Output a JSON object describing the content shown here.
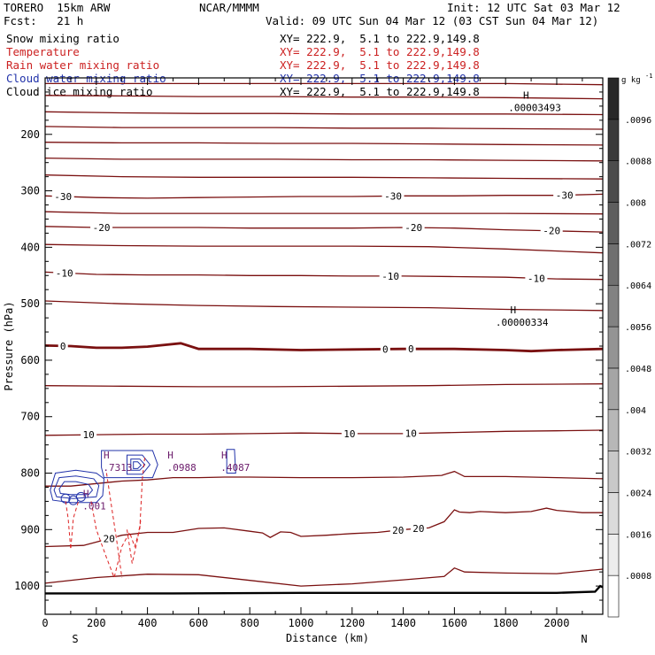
{
  "header": {
    "model": "TORERO  15km ARW",
    "org": "NCAR/MMMM",
    "init": "Init: 12 UTC Sat 03 Mar 12",
    "fcst": "Fcst:   21 h",
    "valid": "Valid: 09 UTC Sun 04 Mar 12 (03 CST Sun 04 Mar 12)"
  },
  "legend": [
    {
      "field": "Snow mixing ratio",
      "xy": "XY= 222.9,  5.1 to 222.9,149.8",
      "color": "#000000"
    },
    {
      "field": "Temperature",
      "xy": "XY= 222.9,  5.1 to 222.9,149.8",
      "color": "#cc2222"
    },
    {
      "field": "Rain water mixing ratio",
      "xy": "XY= 222.9,  5.1 to 222.9,149.8",
      "color": "#cc2222"
    },
    {
      "field": "Cloud water mixing ratio",
      "xy": "XY= 222.9,  5.1 to 222.9,149.8",
      "color": "#2233aa"
    },
    {
      "field": "Cloud ice mixing ratio",
      "xy": "XY= 222.9,  5.1 to 222.9,149.8",
      "color": "#000000"
    }
  ],
  "chart_data": {
    "type": "line",
    "xlabel": "Distance (km)",
    "ylabel": "Pressure (hPa)",
    "xlim": [
      0,
      2180
    ],
    "ylim": [
      1050,
      100
    ],
    "x_ticks": [
      0,
      200,
      400,
      600,
      800,
      1000,
      1200,
      1400,
      1600,
      1800,
      2000
    ],
    "y_ticks": [
      200,
      300,
      400,
      500,
      600,
      700,
      800,
      900,
      1000
    ],
    "x_endpoints": {
      "left": "S",
      "right": "N"
    },
    "colorbar": {
      "unit": "g kg",
      "unit_exp": "-1",
      "ticks": [
        ".0008",
        ".0016",
        ".0024",
        ".0032",
        ".004",
        ".0048",
        ".0056",
        ".0064",
        ".0072",
        ".008",
        ".0088",
        ".0096"
      ]
    },
    "temperature_isotherms": [
      {
        "label": "-30",
        "points": [
          [
            0,
            309
          ],
          [
            200,
            312
          ],
          [
            400,
            313
          ],
          [
            600,
            312
          ],
          [
            800,
            311
          ],
          [
            1000,
            310
          ],
          [
            1200,
            310
          ],
          [
            1400,
            309
          ],
          [
            1600,
            309
          ],
          [
            1800,
            308
          ],
          [
            2000,
            308
          ],
          [
            2180,
            306
          ]
        ],
        "labels_at": [
          70,
          1360,
          2030
        ]
      },
      {
        "label": "-20",
        "points": [
          [
            0,
            363
          ],
          [
            200,
            365
          ],
          [
            400,
            365
          ],
          [
            600,
            365
          ],
          [
            800,
            366
          ],
          [
            1000,
            366
          ],
          [
            1200,
            366
          ],
          [
            1400,
            365
          ],
          [
            1600,
            366
          ],
          [
            1800,
            369
          ],
          [
            2000,
            371
          ],
          [
            2180,
            373
          ]
        ],
        "labels_at": [
          220,
          1440,
          1980
        ]
      },
      {
        "label": "-10",
        "points": [
          [
            0,
            444
          ],
          [
            200,
            448
          ],
          [
            400,
            449
          ],
          [
            600,
            449
          ],
          [
            800,
            450
          ],
          [
            1000,
            450
          ],
          [
            1200,
            451
          ],
          [
            1400,
            451
          ],
          [
            1600,
            452
          ],
          [
            1800,
            453
          ],
          [
            2000,
            456
          ],
          [
            2180,
            457
          ]
        ],
        "labels_at": [
          75,
          1350,
          1920
        ]
      },
      {
        "label": "0",
        "points": [
          [
            0,
            574
          ],
          [
            100,
            575
          ],
          [
            200,
            578
          ],
          [
            300,
            578
          ],
          [
            400,
            576
          ],
          [
            530,
            570
          ],
          [
            600,
            580
          ],
          [
            700,
            580
          ],
          [
            800,
            580
          ],
          [
            1000,
            582
          ],
          [
            1200,
            581
          ],
          [
            1400,
            580
          ],
          [
            1600,
            580
          ],
          [
            1800,
            582
          ],
          [
            1900,
            584
          ],
          [
            2000,
            582
          ],
          [
            2180,
            580
          ]
        ],
        "labels_at": [
          70,
          1330,
          1430
        ],
        "bold": true
      },
      {
        "label": "10",
        "points": [
          [
            0,
            733
          ],
          [
            200,
            732
          ],
          [
            400,
            731
          ],
          [
            600,
            731
          ],
          [
            800,
            730
          ],
          [
            1000,
            729
          ],
          [
            1200,
            730
          ],
          [
            1400,
            730
          ],
          [
            1600,
            728
          ],
          [
            1800,
            726
          ],
          [
            2000,
            725
          ],
          [
            2180,
            724
          ]
        ],
        "labels_at": [
          170,
          1190,
          1430
        ]
      },
      {
        "label": "20",
        "points": [
          [
            0,
            930
          ],
          [
            150,
            928
          ],
          [
            300,
            910
          ],
          [
            400,
            905
          ],
          [
            500,
            905
          ],
          [
            600,
            898
          ],
          [
            700,
            897
          ],
          [
            800,
            903
          ],
          [
            850,
            906
          ],
          [
            880,
            914
          ],
          [
            920,
            904
          ],
          [
            960,
            905
          ],
          [
            1000,
            912
          ],
          [
            1100,
            910
          ],
          [
            1200,
            907
          ],
          [
            1300,
            905
          ],
          [
            1400,
            900
          ],
          [
            1500,
            897
          ],
          [
            1560,
            886
          ],
          [
            1600,
            865
          ],
          [
            1620,
            869
          ],
          [
            1660,
            870
          ],
          [
            1700,
            868
          ],
          [
            1800,
            870
          ],
          [
            1900,
            868
          ],
          [
            1960,
            862
          ],
          [
            2000,
            866
          ],
          [
            2100,
            870
          ],
          [
            2180,
            870
          ]
        ],
        "labels_at": [
          250,
          1380,
          1460
        ]
      }
    ],
    "extra_isotherms": [
      {
        "points": [
          [
            0,
            110
          ],
          [
            300,
            110
          ],
          [
            600,
            110
          ],
          [
            900,
            110
          ],
          [
            1200,
            110
          ],
          [
            1500,
            110
          ],
          [
            1800,
            110
          ],
          [
            2180,
            112
          ]
        ]
      },
      {
        "points": [
          [
            0,
            131
          ],
          [
            300,
            132
          ],
          [
            600,
            133
          ],
          [
            900,
            133
          ],
          [
            1200,
            134
          ],
          [
            1500,
            134
          ],
          [
            1800,
            135
          ],
          [
            2180,
            137
          ]
        ]
      },
      {
        "points": [
          [
            0,
            160
          ],
          [
            300,
            162
          ],
          [
            600,
            163
          ],
          [
            900,
            163
          ],
          [
            1200,
            164
          ],
          [
            1500,
            164
          ],
          [
            1800,
            164
          ],
          [
            2180,
            165
          ]
        ]
      },
      {
        "points": [
          [
            0,
            186
          ],
          [
            300,
            188
          ],
          [
            600,
            188
          ],
          [
            900,
            188
          ],
          [
            1200,
            189
          ],
          [
            1500,
            189
          ],
          [
            1800,
            190
          ],
          [
            2180,
            191
          ]
        ]
      },
      {
        "points": [
          [
            0,
            214
          ],
          [
            300,
            215
          ],
          [
            600,
            215
          ],
          [
            900,
            216
          ],
          [
            1200,
            216
          ],
          [
            1500,
            217
          ],
          [
            1800,
            218
          ],
          [
            2180,
            219
          ]
        ]
      },
      {
        "points": [
          [
            0,
            242
          ],
          [
            300,
            244
          ],
          [
            600,
            244
          ],
          [
            900,
            244
          ],
          [
            1200,
            245
          ],
          [
            1500,
            245
          ],
          [
            1800,
            246
          ],
          [
            2180,
            247
          ]
        ]
      },
      {
        "points": [
          [
            0,
            272
          ],
          [
            300,
            275
          ],
          [
            600,
            276
          ],
          [
            900,
            276
          ],
          [
            1200,
            276
          ],
          [
            1500,
            277
          ],
          [
            1800,
            278
          ],
          [
            2180,
            279
          ]
        ]
      },
      {
        "points": [
          [
            0,
            337
          ],
          [
            300,
            340
          ],
          [
            600,
            340
          ],
          [
            900,
            340
          ],
          [
            1200,
            340
          ],
          [
            1500,
            340
          ],
          [
            1800,
            340
          ],
          [
            2180,
            341
          ]
        ]
      },
      {
        "points": [
          [
            0,
            395
          ],
          [
            300,
            397
          ],
          [
            600,
            398
          ],
          [
            900,
            398
          ],
          [
            1200,
            398
          ],
          [
            1500,
            399
          ],
          [
            1800,
            403
          ],
          [
            2180,
            410
          ]
        ]
      },
      {
        "points": [
          [
            0,
            495
          ],
          [
            300,
            500
          ],
          [
            600,
            503
          ],
          [
            900,
            505
          ],
          [
            1200,
            506
          ],
          [
            1500,
            507
          ],
          [
            1800,
            510
          ],
          [
            2180,
            512
          ]
        ]
      },
      {
        "points": [
          [
            0,
            645
          ],
          [
            300,
            646
          ],
          [
            600,
            647
          ],
          [
            900,
            647
          ],
          [
            1200,
            646
          ],
          [
            1500,
            645
          ],
          [
            1800,
            643
          ],
          [
            2180,
            642
          ]
        ]
      },
      {
        "points": [
          [
            0,
            823
          ],
          [
            100,
            823
          ],
          [
            300,
            814
          ],
          [
            400,
            812
          ],
          [
            500,
            808
          ],
          [
            600,
            808
          ],
          [
            700,
            807
          ],
          [
            800,
            807
          ],
          [
            1000,
            808
          ],
          [
            1200,
            808
          ],
          [
            1400,
            807
          ],
          [
            1550,
            804
          ],
          [
            1600,
            797
          ],
          [
            1640,
            806
          ],
          [
            1700,
            806
          ],
          [
            1800,
            806
          ],
          [
            2000,
            808
          ],
          [
            2180,
            810
          ]
        ]
      },
      {
        "points": [
          [
            0,
            995
          ],
          [
            200,
            985
          ],
          [
            400,
            979
          ],
          [
            600,
            980
          ],
          [
            800,
            990
          ],
          [
            1000,
            1000
          ],
          [
            1200,
            996
          ],
          [
            1400,
            989
          ],
          [
            1560,
            983
          ],
          [
            1600,
            968
          ],
          [
            1640,
            975
          ],
          [
            1800,
            977
          ],
          [
            2000,
            978
          ],
          [
            2180,
            970
          ]
        ]
      }
    ],
    "surface": {
      "points": [
        [
          0,
          1013
        ],
        [
          500,
          1013
        ],
        [
          1000,
          1012
        ],
        [
          1500,
          1012
        ],
        [
          2000,
          1012
        ],
        [
          2150,
          1010
        ],
        [
          2170,
          1000
        ],
        [
          2180,
          1002
        ]
      ]
    },
    "highs": [
      {
        "symbol": "H",
        "value": ".00003493",
        "x": 1880,
        "p": 137
      },
      {
        "symbol": "H",
        "value": ".00000334",
        "x": 1830,
        "p": 517
      },
      {
        "symbol": "H",
        "value": ".7313",
        "x": 240,
        "p": 774
      },
      {
        "symbol": "H",
        "value": ".0988",
        "x": 490,
        "p": 774
      },
      {
        "symbol": "H",
        "value": ".4087",
        "x": 700,
        "p": 774
      },
      {
        "symbol": "H",
        "value": ".001",
        "x": 160,
        "p": 842
      }
    ]
  }
}
